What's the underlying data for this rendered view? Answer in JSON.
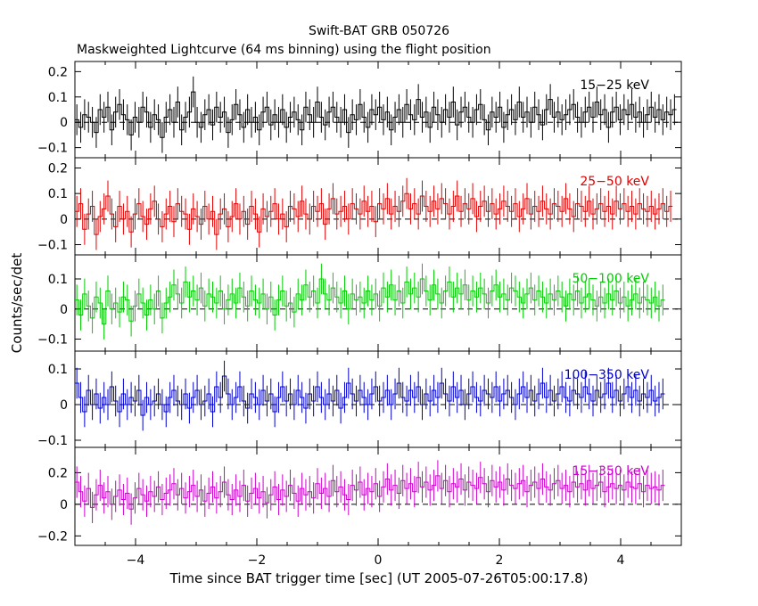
{
  "chart_data": {
    "type": "line",
    "title": "Swift-BAT GRB 050726",
    "subtitle": "Maskweighted Lightcurve (64 ms binning) using the flight position",
    "xlabel": "Time since BAT trigger time [sec] (UT 2005-07-26T05:00:17.8)",
    "ylabel": "Counts/sec/det",
    "xlim": [
      -5.0,
      5.0
    ],
    "x_ticks": [
      -4,
      -2,
      0,
      2,
      4
    ],
    "x_tick_labels": [
      "−4",
      "−2",
      "0",
      "2",
      "4"
    ],
    "bin_width": 0.064,
    "panels": [
      {
        "label": "15−25 keV",
        "color": "#000000",
        "ylim": [
          -0.14,
          0.24
        ],
        "y_ticks": [
          -0.1,
          0,
          0.1,
          0.2
        ],
        "y_tick_labels": [
          "−0.1",
          "0",
          "0.1",
          "0.2"
        ],
        "values": [
          0.01,
          -0.02,
          0.03,
          0.02,
          0.0,
          -0.04,
          0.05,
          0.02,
          0.06,
          -0.03,
          0.04,
          0.07,
          0.03,
          0.01,
          -0.05,
          0.02,
          0.0,
          0.06,
          0.04,
          -0.02,
          0.03,
          0.01,
          -0.06,
          0.02,
          0.05,
          0.0,
          0.08,
          -0.03,
          0.02,
          0.04,
          0.12,
          0.0,
          -0.02,
          0.03,
          0.05,
          -0.01,
          0.06,
          0.02,
          0.04,
          -0.04,
          0.01,
          0.07,
          0.03,
          -0.02,
          0.05,
          0.0,
          0.02,
          -0.03,
          0.04,
          0.06,
          -0.01,
          0.03,
          0.0,
          0.05,
          -0.02,
          0.02,
          0.04,
          0.01,
          -0.03,
          0.06,
          0.03,
          0.0,
          0.08,
          0.02,
          -0.01,
          0.04,
          0.06,
          0.02,
          0.0,
          0.05,
          -0.04,
          0.03,
          0.01,
          0.07,
          0.02,
          -0.02,
          0.05,
          0.03,
          0.06,
          0.01,
          0.04,
          -0.03,
          0.02,
          0.05,
          0.0,
          0.07,
          0.03,
          0.01,
          0.09,
          0.02,
          0.04,
          -0.02,
          0.06,
          0.03,
          0.0,
          0.05,
          0.02,
          0.08,
          -0.01,
          0.04,
          0.06,
          0.02,
          0.0,
          0.05,
          0.07,
          0.01,
          -0.03,
          0.04,
          0.02,
          0.06,
          -0.02,
          0.03,
          0.05,
          0.01,
          0.08,
          0.02,
          0.04,
          0.0,
          0.06,
          0.03,
          -0.01,
          0.05,
          0.09,
          0.02,
          0.04,
          0.01,
          0.03,
          0.05,
          0.07,
          0.02,
          0.0,
          0.04,
          0.06,
          0.02,
          0.08,
          0.03,
          0.05,
          -0.02,
          0.04,
          0.06,
          0.01,
          0.05,
          0.03,
          0.07,
          0.02,
          0.04,
          0.0,
          0.03,
          0.06,
          0.02,
          0.05,
          0.01,
          0.04,
          0.03,
          0.05
        ]
      },
      {
        "label": "25−50 keV",
        "color": "#e00000",
        "ylim": [
          -0.14,
          0.24
        ],
        "y_ticks": [
          -0.1,
          0,
          0.1,
          0.2
        ],
        "y_tick_labels": [
          "−0.1",
          "0",
          "0.1",
          "0.2"
        ],
        "values": [
          0.03,
          0.06,
          -0.04,
          0.02,
          0.05,
          -0.06,
          0.01,
          0.04,
          0.09,
          0.02,
          -0.03,
          0.05,
          0.0,
          0.03,
          -0.05,
          0.02,
          0.06,
          0.01,
          -0.02,
          0.04,
          0.07,
          0.0,
          -0.03,
          0.02,
          0.05,
          -0.01,
          0.06,
          0.03,
          0.02,
          -0.04,
          0.04,
          0.01,
          -0.02,
          0.05,
          0.0,
          0.03,
          -0.06,
          0.02,
          0.04,
          -0.03,
          0.01,
          0.06,
          0.0,
          0.03,
          -0.02,
          0.05,
          0.02,
          -0.05,
          0.04,
          0.01,
          0.03,
          0.06,
          0.0,
          0.02,
          -0.03,
          0.05,
          0.04,
          0.01,
          0.07,
          0.02,
          0.0,
          0.05,
          0.03,
          0.06,
          -0.02,
          0.04,
          0.08,
          0.02,
          0.03,
          0.05,
          0.0,
          0.06,
          0.04,
          0.02,
          0.07,
          0.03,
          0.05,
          -0.01,
          0.06,
          0.04,
          0.08,
          0.02,
          0.05,
          0.03,
          0.07,
          0.1,
          0.04,
          0.06,
          0.02,
          0.09,
          0.05,
          0.03,
          0.07,
          0.04,
          0.08,
          0.06,
          0.02,
          0.05,
          0.09,
          0.03,
          0.06,
          0.04,
          0.08,
          0.01,
          0.05,
          0.07,
          0.03,
          0.06,
          0.02,
          0.04,
          0.07,
          0.05,
          0.03,
          0.06,
          0.01,
          0.04,
          0.08,
          0.02,
          0.05,
          0.03,
          0.07,
          0.04,
          0.02,
          0.06,
          0.05,
          0.03,
          0.08,
          0.04,
          0.01,
          0.06,
          0.05,
          0.03,
          0.07,
          0.02,
          0.04,
          0.06,
          0.03,
          0.05,
          0.02,
          0.07,
          0.04,
          0.06,
          0.03,
          0.05,
          0.02,
          0.06,
          0.04,
          0.03,
          0.05,
          0.02,
          0.04,
          0.06,
          0.03,
          0.05
        ]
      },
      {
        "label": "50−100 keV",
        "color": "#00cc00",
        "ylim": [
          -0.14,
          0.18
        ],
        "y_ticks": [
          -0.1,
          0,
          0.1
        ],
        "y_tick_labels": [
          "−0.1",
          "0",
          "0.1"
        ],
        "values": [
          0.03,
          -0.02,
          0.05,
          0.01,
          -0.03,
          0.04,
          0.02,
          -0.05,
          0.06,
          0.0,
          0.02,
          -0.01,
          0.04,
          0.03,
          -0.04,
          0.01,
          0.05,
          0.02,
          -0.02,
          0.03,
          0.0,
          0.06,
          -0.03,
          0.02,
          0.04,
          0.08,
          0.05,
          0.02,
          0.09,
          0.04,
          0.06,
          0.03,
          0.07,
          0.01,
          0.05,
          0.04,
          0.02,
          0.06,
          0.0,
          0.03,
          0.05,
          0.02,
          0.07,
          0.04,
          0.01,
          0.06,
          0.03,
          0.02,
          0.05,
          0.0,
          0.04,
          -0.02,
          0.03,
          0.06,
          0.01,
          0.02,
          -0.01,
          0.05,
          0.03,
          0.08,
          0.04,
          0.06,
          0.02,
          0.1,
          0.05,
          0.03,
          0.07,
          0.04,
          0.02,
          0.06,
          0.0,
          0.05,
          0.03,
          0.04,
          0.02,
          0.06,
          0.03,
          0.05,
          0.01,
          0.07,
          0.04,
          0.08,
          0.03,
          0.06,
          0.02,
          0.09,
          0.05,
          0.07,
          0.04,
          0.1,
          0.06,
          0.03,
          0.08,
          0.05,
          0.02,
          0.06,
          0.09,
          0.04,
          0.07,
          0.05,
          0.08,
          0.03,
          0.06,
          0.04,
          0.07,
          0.05,
          0.02,
          0.06,
          0.08,
          0.04,
          0.05,
          0.03,
          0.07,
          0.06,
          0.04,
          0.02,
          0.05,
          0.07,
          0.03,
          0.06,
          0.04,
          0.02,
          0.05,
          0.03,
          0.06,
          0.04,
          0.01,
          0.05,
          0.03,
          0.06,
          0.02,
          0.04,
          0.05,
          0.03,
          0.01,
          0.04,
          0.02,
          0.05,
          0.03,
          0.06,
          0.02,
          0.04,
          0.01,
          0.03,
          0.05,
          0.02,
          0.04,
          0.03,
          0.02,
          0.04,
          0.01,
          0.03
        ]
      },
      {
        "label": "100−350 keV",
        "color": "#0000cc",
        "ylim": [
          -0.12,
          0.15
        ],
        "y_ticks": [
          -0.1,
          0,
          0.1
        ],
        "y_tick_labels": [
          "−0.1",
          "0",
          "0.1"
        ],
        "values": [
          0.06,
          0.02,
          -0.02,
          0.04,
          0.0,
          0.03,
          -0.01,
          0.02,
          0.0,
          0.05,
          0.01,
          -0.02,
          0.03,
          0.0,
          0.02,
          0.01,
          0.04,
          -0.03,
          0.02,
          0.0,
          0.01,
          0.03,
          0.0,
          -0.02,
          0.02,
          0.04,
          0.01,
          0.0,
          0.03,
          -0.01,
          0.02,
          0.04,
          0.0,
          0.01,
          0.03,
          -0.02,
          0.05,
          0.02,
          0.08,
          0.03,
          0.0,
          0.02,
          0.05,
          0.01,
          -0.01,
          0.03,
          0.02,
          0.0,
          0.04,
          0.01,
          0.03,
          -0.02,
          0.02,
          0.05,
          0.01,
          0.03,
          0.0,
          0.04,
          0.02,
          -0.01,
          0.03,
          0.01,
          0.05,
          0.02,
          0.0,
          0.03,
          0.01,
          0.04,
          -0.01,
          0.02,
          0.06,
          0.03,
          0.01,
          0.04,
          0.02,
          0.0,
          0.03,
          0.05,
          0.01,
          0.02,
          0.04,
          0.0,
          0.03,
          0.06,
          0.02,
          0.01,
          0.04,
          0.02,
          0.05,
          0.0,
          0.03,
          0.01,
          0.04,
          0.02,
          0.06,
          0.03,
          0.01,
          0.05,
          0.02,
          0.04,
          0.0,
          0.03,
          0.05,
          0.02,
          0.01,
          0.04,
          0.03,
          0.02,
          0.05,
          0.01,
          0.03,
          0.04,
          0.02,
          0.0,
          0.03,
          0.05,
          0.02,
          0.04,
          0.01,
          0.03,
          0.06,
          0.02,
          0.04,
          0.01,
          0.03,
          0.05,
          0.02,
          0.01,
          0.04,
          0.03,
          0.02,
          0.05,
          0.03,
          0.01,
          0.04,
          0.02,
          0.03,
          0.06,
          0.02,
          0.04,
          0.01,
          0.03,
          0.05,
          0.02,
          0.04,
          0.01,
          0.03,
          0.02,
          0.04,
          0.01,
          0.02,
          0.03
        ]
      },
      {
        "label": "15−350 keV",
        "color": "#cc00cc",
        "ylim": [
          -0.26,
          0.36
        ],
        "y_ticks": [
          -0.2,
          0,
          0.2
        ],
        "y_tick_labels": [
          "−0.2",
          "0",
          "0.2"
        ],
        "values": [
          0.14,
          0.08,
          0.02,
          0.1,
          -0.02,
          0.06,
          0.12,
          0.04,
          0.08,
          0.0,
          0.05,
          0.09,
          0.03,
          0.07,
          -0.03,
          0.04,
          0.1,
          0.06,
          0.02,
          0.08,
          0.05,
          0.11,
          0.03,
          0.07,
          0.09,
          0.13,
          0.06,
          0.1,
          0.04,
          0.08,
          0.12,
          0.05,
          0.09,
          0.02,
          0.07,
          0.11,
          0.04,
          0.08,
          0.14,
          0.06,
          0.03,
          0.09,
          0.05,
          0.12,
          0.02,
          0.07,
          0.1,
          0.04,
          0.08,
          0.01,
          0.06,
          0.11,
          0.03,
          0.09,
          0.05,
          0.12,
          0.07,
          0.02,
          0.1,
          0.06,
          0.08,
          0.04,
          0.13,
          0.07,
          0.1,
          0.05,
          0.15,
          0.08,
          0.11,
          0.06,
          0.03,
          0.12,
          0.09,
          0.14,
          0.06,
          0.1,
          0.08,
          0.13,
          0.05,
          0.11,
          0.16,
          0.09,
          0.12,
          0.07,
          0.15,
          0.1,
          0.13,
          0.08,
          0.17,
          0.11,
          0.14,
          0.09,
          0.12,
          0.18,
          0.1,
          0.15,
          0.08,
          0.13,
          0.11,
          0.16,
          0.09,
          0.14,
          0.12,
          0.1,
          0.17,
          0.13,
          0.08,
          0.15,
          0.11,
          0.14,
          0.09,
          0.16,
          0.12,
          0.1,
          0.13,
          0.15,
          0.08,
          0.12,
          0.14,
          0.1,
          0.16,
          0.11,
          0.09,
          0.13,
          0.15,
          0.1,
          0.12,
          0.08,
          0.14,
          0.11,
          0.13,
          0.09,
          0.15,
          0.1,
          0.12,
          0.14,
          0.08,
          0.11,
          0.13,
          0.1,
          0.12,
          0.09,
          0.14,
          0.11,
          0.1,
          0.13,
          0.08,
          0.12,
          0.1,
          0.11,
          0.09,
          0.12
        ]
      }
    ]
  }
}
